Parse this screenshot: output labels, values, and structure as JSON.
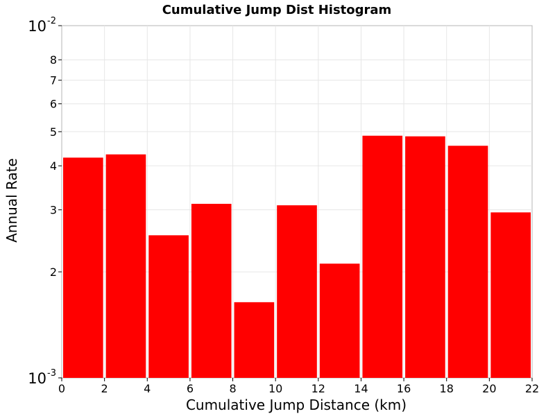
{
  "chart_data": {
    "type": "bar",
    "title": "Cumulative Jump Dist Histogram",
    "xlabel": "Cumulative Jump Distance (km)",
    "ylabel": "Annual Rate",
    "xlim": [
      0,
      22
    ],
    "ylim": [
      0.001,
      0.01
    ],
    "y_scale": "log",
    "grid": true,
    "bar_color": "#ff0000",
    "x_ticks": [
      "0",
      "2",
      "4",
      "6",
      "8",
      "10",
      "12",
      "14",
      "16",
      "18",
      "20",
      "22"
    ],
    "y_major_ticks": [
      {
        "base": "10",
        "exp": "-3"
      },
      {
        "base": "10",
        "exp": "-2"
      }
    ],
    "y_minor_ticks": [
      "2",
      "3",
      "4",
      "5",
      "6",
      "7",
      "8"
    ],
    "bins": [
      {
        "x0": 0,
        "x1": 2,
        "value": 0.00422
      },
      {
        "x0": 2,
        "x1": 4,
        "value": 0.00431
      },
      {
        "x0": 4,
        "x1": 6,
        "value": 0.00254
      },
      {
        "x0": 6,
        "x1": 8,
        "value": 0.00312
      },
      {
        "x0": 8,
        "x1": 10,
        "value": 0.00164
      },
      {
        "x0": 10,
        "x1": 12,
        "value": 0.00309
      },
      {
        "x0": 12,
        "x1": 14,
        "value": 0.00211
      },
      {
        "x0": 14,
        "x1": 16,
        "value": 0.00487
      },
      {
        "x0": 16,
        "x1": 18,
        "value": 0.00485
      },
      {
        "x0": 18,
        "x1": 20,
        "value": 0.00456
      },
      {
        "x0": 20,
        "x1": 22,
        "value": 0.00295
      }
    ]
  }
}
